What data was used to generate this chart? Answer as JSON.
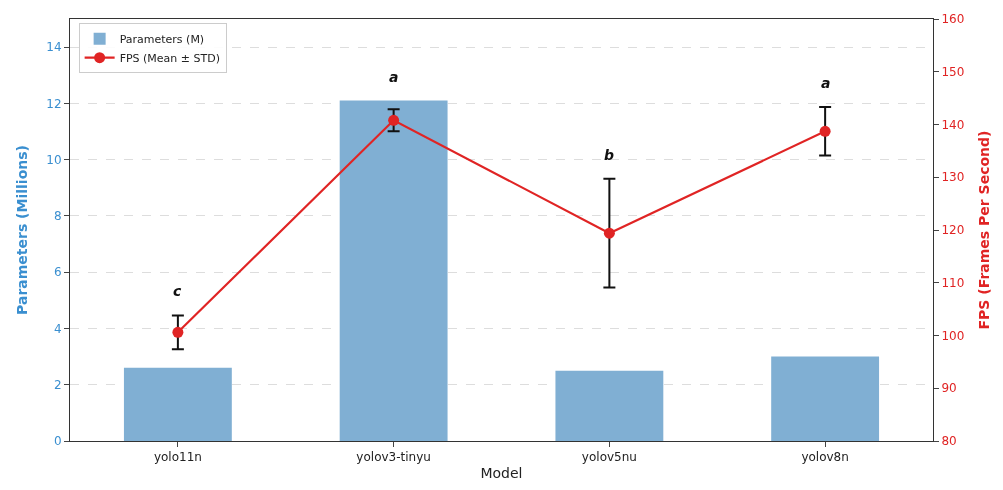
{
  "chart_data": {
    "type": "bar",
    "xlabel": "Model",
    "ylabel": "Parameters (Millions)",
    "y2label": "FPS (Frames Per Second)",
    "categories": [
      "yolo11n",
      "yolov3-tinyu",
      "yolov5nu",
      "yolov8n"
    ],
    "series": [
      {
        "name": "Parameters (M)",
        "color": "#80afd3",
        "values": [
          2.6,
          12.1,
          2.5,
          3.0
        ]
      },
      {
        "name": "FPS (Mean ± STD)",
        "type": "line",
        "axis": "y2",
        "color": "#e02424",
        "values": [
          100.6,
          140.8,
          119.4,
          138.7
        ],
        "errors": [
          3.2,
          2.1,
          10.3,
          4.6
        ],
        "marker": "circle",
        "line_style": "solid"
      }
    ],
    "ylim": [
      0,
      15
    ],
    "yticks": [
      0,
      2,
      4,
      6,
      8,
      10,
      12,
      14
    ],
    "y2lim": [
      80,
      160
    ],
    "y2ticks": [
      80,
      90,
      100,
      110,
      120,
      130,
      140,
      150,
      160
    ],
    "grid": "y",
    "legend": "top left",
    "annotations": [
      "c",
      "a",
      "b",
      "a"
    ]
  }
}
